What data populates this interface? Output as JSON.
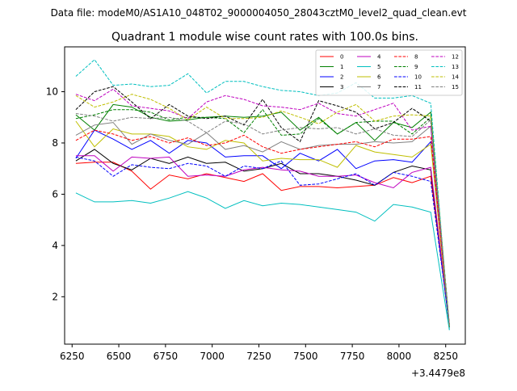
{
  "chart_data": {
    "type": "line",
    "suptitle": "Data file: modeM0/AS1A10_048T02_9000004050_28043cztM0_level2_quad_clean.evt",
    "title": "Quadrant 1 module wise count rates with 100.0s bins.",
    "xlabel": "",
    "ylabel": "",
    "offset_label": "+3.4479e8",
    "xlim": [
      6210,
      8355
    ],
    "ylim": [
      0.15,
      11.75
    ],
    "xticks": [
      6250,
      6500,
      6750,
      7000,
      7250,
      7500,
      7750,
      8000,
      8250
    ],
    "yticks": [
      2,
      4,
      6,
      8,
      10
    ],
    "x": [
      6270,
      6370,
      6470,
      6570,
      6670,
      6770,
      6870,
      6970,
      7070,
      7170,
      7270,
      7370,
      7470,
      7570,
      7670,
      7770,
      7870,
      7970,
      8070,
      8170,
      8270
    ],
    "legend_position": "upper-right",
    "series": [
      {
        "name": "0",
        "color": "#ff0000",
        "dash": "solid",
        "values": [
          7.2,
          7.25,
          7.25,
          6.9,
          6.2,
          6.75,
          6.6,
          6.8,
          6.65,
          6.5,
          6.8,
          6.15,
          6.3,
          6.3,
          6.25,
          6.3,
          6.35,
          6.65,
          6.45,
          6.7,
          0.9
        ]
      },
      {
        "name": "1",
        "color": "#008000",
        "dash": "solid",
        "values": [
          9.1,
          8.5,
          9.5,
          9.4,
          9.0,
          8.85,
          8.9,
          9.0,
          9.05,
          9.0,
          9.05,
          9.2,
          8.5,
          9.0,
          8.35,
          8.8,
          8.1,
          8.8,
          8.6,
          9.2,
          0.8
        ]
      },
      {
        "name": "2",
        "color": "#0000ff",
        "dash": "solid",
        "values": [
          7.4,
          8.5,
          8.15,
          7.75,
          8.1,
          7.6,
          8.1,
          8.0,
          7.45,
          7.5,
          7.5,
          7.0,
          7.6,
          7.3,
          7.75,
          7.0,
          7.3,
          7.35,
          7.25,
          8.05,
          0.8
        ]
      },
      {
        "name": "3",
        "color": "#000000",
        "dash": "solid",
        "values": [
          7.3,
          7.75,
          7.2,
          6.95,
          7.4,
          7.2,
          7.45,
          7.2,
          7.25,
          6.9,
          7.0,
          7.2,
          6.8,
          6.8,
          6.7,
          6.55,
          6.35,
          6.85,
          7.1,
          6.95,
          0.8
        ]
      },
      {
        "name": "4",
        "color": "#bf00bf",
        "dash": "solid",
        "values": [
          7.5,
          7.5,
          6.9,
          7.45,
          7.4,
          7.45,
          6.7,
          6.75,
          6.7,
          6.95,
          7.05,
          6.95,
          6.9,
          6.7,
          6.7,
          6.75,
          6.45,
          6.25,
          6.85,
          7.05,
          0.9
        ]
      },
      {
        "name": "5",
        "color": "#00bfbf",
        "dash": "solid",
        "values": [
          6.05,
          5.7,
          5.7,
          5.75,
          5.65,
          5.85,
          6.1,
          5.85,
          5.45,
          5.75,
          5.55,
          5.65,
          5.6,
          5.5,
          5.4,
          5.3,
          4.95,
          5.6,
          5.5,
          5.3,
          0.7
        ]
      },
      {
        "name": "6",
        "color": "#bfbf00",
        "dash": "solid",
        "values": [
          8.85,
          7.85,
          8.55,
          8.35,
          8.35,
          8.25,
          7.85,
          7.75,
          8.1,
          8.0,
          7.3,
          7.4,
          7.35,
          7.35,
          7.05,
          7.9,
          7.65,
          7.55,
          7.45,
          7.95,
          0.8
        ]
      },
      {
        "name": "7",
        "color": "#808080",
        "dash": "solid",
        "values": [
          8.3,
          8.7,
          8.8,
          7.95,
          8.35,
          8.1,
          7.95,
          8.4,
          7.75,
          7.9,
          7.65,
          8.05,
          7.75,
          7.9,
          7.95,
          7.95,
          8.05,
          8.0,
          8.05,
          8.65,
          0.8
        ]
      },
      {
        "name": "8",
        "color": "#ff0000",
        "dash": "dashed",
        "values": [
          8.1,
          8.5,
          8.35,
          8.1,
          8.25,
          8.0,
          8.2,
          7.9,
          8.0,
          8.3,
          7.85,
          7.6,
          7.75,
          7.85,
          7.95,
          8.05,
          7.85,
          8.15,
          8.15,
          8.25,
          0.9
        ]
      },
      {
        "name": "9",
        "color": "#008000",
        "dash": "dashed",
        "values": [
          8.95,
          9.1,
          9.3,
          9.3,
          9.2,
          8.9,
          9.0,
          9.0,
          8.95,
          8.4,
          9.3,
          8.3,
          8.35,
          8.95,
          8.35,
          8.8,
          8.85,
          8.85,
          8.35,
          9.0,
          0.85
        ]
      },
      {
        "name": "10",
        "color": "#0000ff",
        "dash": "dashed",
        "values": [
          7.45,
          7.3,
          6.7,
          7.15,
          7.05,
          7.0,
          7.2,
          7.1,
          6.7,
          7.1,
          7.0,
          7.3,
          6.35,
          6.4,
          6.6,
          6.8,
          6.35,
          6.85,
          6.7,
          6.5,
          0.9
        ]
      },
      {
        "name": "11",
        "color": "#000000",
        "dash": "dashed",
        "values": [
          9.3,
          10.0,
          10.2,
          9.6,
          8.95,
          9.5,
          9.05,
          8.95,
          9.05,
          8.7,
          9.7,
          8.6,
          8.05,
          9.65,
          9.45,
          9.2,
          8.55,
          8.8,
          9.35,
          8.85,
          0.9
        ]
      },
      {
        "name": "12",
        "color": "#bf00bf",
        "dash": "dashed",
        "values": [
          9.9,
          9.65,
          10.1,
          9.45,
          9.35,
          9.25,
          8.95,
          9.6,
          9.85,
          9.7,
          9.45,
          9.4,
          9.3,
          9.55,
          9.15,
          9.05,
          9.3,
          9.55,
          8.5,
          8.65,
          0.9
        ]
      },
      {
        "name": "13",
        "color": "#00bfbf",
        "dash": "dashed",
        "values": [
          10.6,
          11.25,
          10.25,
          10.3,
          10.2,
          10.25,
          10.7,
          9.95,
          10.4,
          10.4,
          10.2,
          10.05,
          10.0,
          9.85,
          9.95,
          10.35,
          9.75,
          9.75,
          9.85,
          9.55,
          0.7
        ]
      },
      {
        "name": "14",
        "color": "#bfbf00",
        "dash": "dashed",
        "values": [
          9.85,
          9.4,
          9.6,
          9.9,
          9.7,
          9.35,
          8.9,
          9.4,
          8.95,
          8.95,
          9.0,
          9.25,
          9.0,
          8.75,
          9.2,
          9.5,
          8.85,
          9.05,
          9.1,
          9.05,
          0.9
        ]
      },
      {
        "name": "15",
        "color": "#808080",
        "dash": "dashed",
        "values": [
          9.15,
          9.05,
          8.85,
          9.0,
          8.95,
          9.0,
          8.85,
          8.4,
          8.85,
          8.75,
          8.35,
          8.5,
          8.6,
          8.55,
          8.6,
          8.35,
          8.55,
          8.3,
          8.25,
          8.9,
          0.9
        ]
      }
    ]
  }
}
